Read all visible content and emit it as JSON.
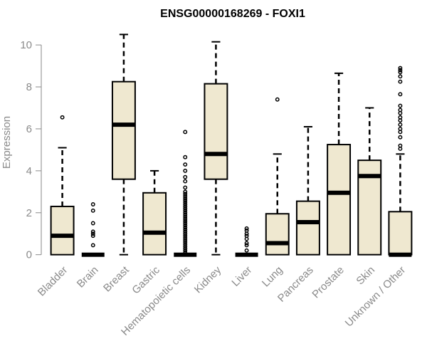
{
  "chart_data": {
    "type": "box",
    "title": "ENSG00000168269 - FOXI1",
    "xlabel": "",
    "ylabel": "Expression",
    "ylim": [
      -0.35,
      10.65
    ],
    "yticks": [
      0,
      2,
      4,
      6,
      8,
      10
    ],
    "box_fill": "#efe8d0",
    "line_color": "#000000",
    "categories": [
      "Bladder",
      "Brain",
      "Breast",
      "Gastric",
      "Hematopoietic cells",
      "Kidney",
      "Liver",
      "Lung",
      "Pancreas",
      "Prostate",
      "Skin",
      "Unknown / Other"
    ],
    "boxes": [
      {
        "category": "Bladder",
        "min": 0,
        "q1": 0,
        "median": 0.9,
        "q3": 2.3,
        "max": 5.1,
        "outliers": [
          6.55
        ]
      },
      {
        "category": "Brain",
        "min": 0,
        "q1": 0,
        "median": 0,
        "q3": 0,
        "max": 0,
        "outliers": [
          0.45,
          0.9,
          1.0,
          1.1,
          1.5,
          2.1,
          2.4
        ]
      },
      {
        "category": "Breast",
        "min": 0,
        "q1": 3.6,
        "median": 6.2,
        "q3": 8.25,
        "max": 10.5,
        "outliers": []
      },
      {
        "category": "Gastric",
        "min": 0,
        "q1": 0,
        "median": 1.05,
        "q3": 2.95,
        "max": 4.0,
        "outliers": []
      },
      {
        "category": "Hematopoietic cells",
        "min": 0,
        "q1": 0,
        "median": 0,
        "q3": 0,
        "max": 0,
        "outliers": [
          0.1,
          0.2,
          0.3,
          0.4,
          0.5,
          0.6,
          0.7,
          0.8,
          0.9,
          1.0,
          1.1,
          1.2,
          1.3,
          1.4,
          1.5,
          1.6,
          1.7,
          1.8,
          1.9,
          2.0,
          2.1,
          2.2,
          2.3,
          2.4,
          2.5,
          2.6,
          2.7,
          2.8,
          2.9,
          3.0,
          3.2,
          3.5,
          3.7,
          4.0,
          4.3,
          4.65,
          5.85
        ]
      },
      {
        "category": "Kidney",
        "min": 0,
        "q1": 3.6,
        "median": 4.8,
        "q3": 8.15,
        "max": 10.15,
        "outliers": []
      },
      {
        "category": "Liver",
        "min": 0,
        "q1": 0,
        "median": 0,
        "q3": 0,
        "max": 0,
        "outliers": [
          0.2,
          0.45,
          0.55,
          0.75,
          0.9,
          1.0,
          1.15,
          1.25
        ]
      },
      {
        "category": "Lung",
        "min": 0,
        "q1": 0,
        "median": 0.55,
        "q3": 1.95,
        "max": 4.8,
        "outliers": [
          7.4
        ]
      },
      {
        "category": "Pancreas",
        "min": 0,
        "q1": 0,
        "median": 1.55,
        "q3": 2.55,
        "max": 6.1,
        "outliers": []
      },
      {
        "category": "Prostate",
        "min": 0,
        "q1": 0,
        "median": 2.95,
        "q3": 5.25,
        "max": 8.65,
        "outliers": []
      },
      {
        "category": "Skin",
        "min": 0,
        "q1": 0,
        "median": 3.75,
        "q3": 4.5,
        "max": 7.0,
        "outliers": []
      },
      {
        "category": "Unknown / Other",
        "min": 0,
        "q1": 0,
        "median": 0,
        "q3": 2.05,
        "max": 4.8,
        "outliers": [
          5.05,
          5.2,
          5.6,
          5.85,
          6.0,
          6.2,
          6.4,
          6.55,
          6.75,
          6.9,
          7.1,
          7.65,
          8.25,
          8.5,
          8.7,
          8.8,
          8.9
        ]
      }
    ]
  }
}
